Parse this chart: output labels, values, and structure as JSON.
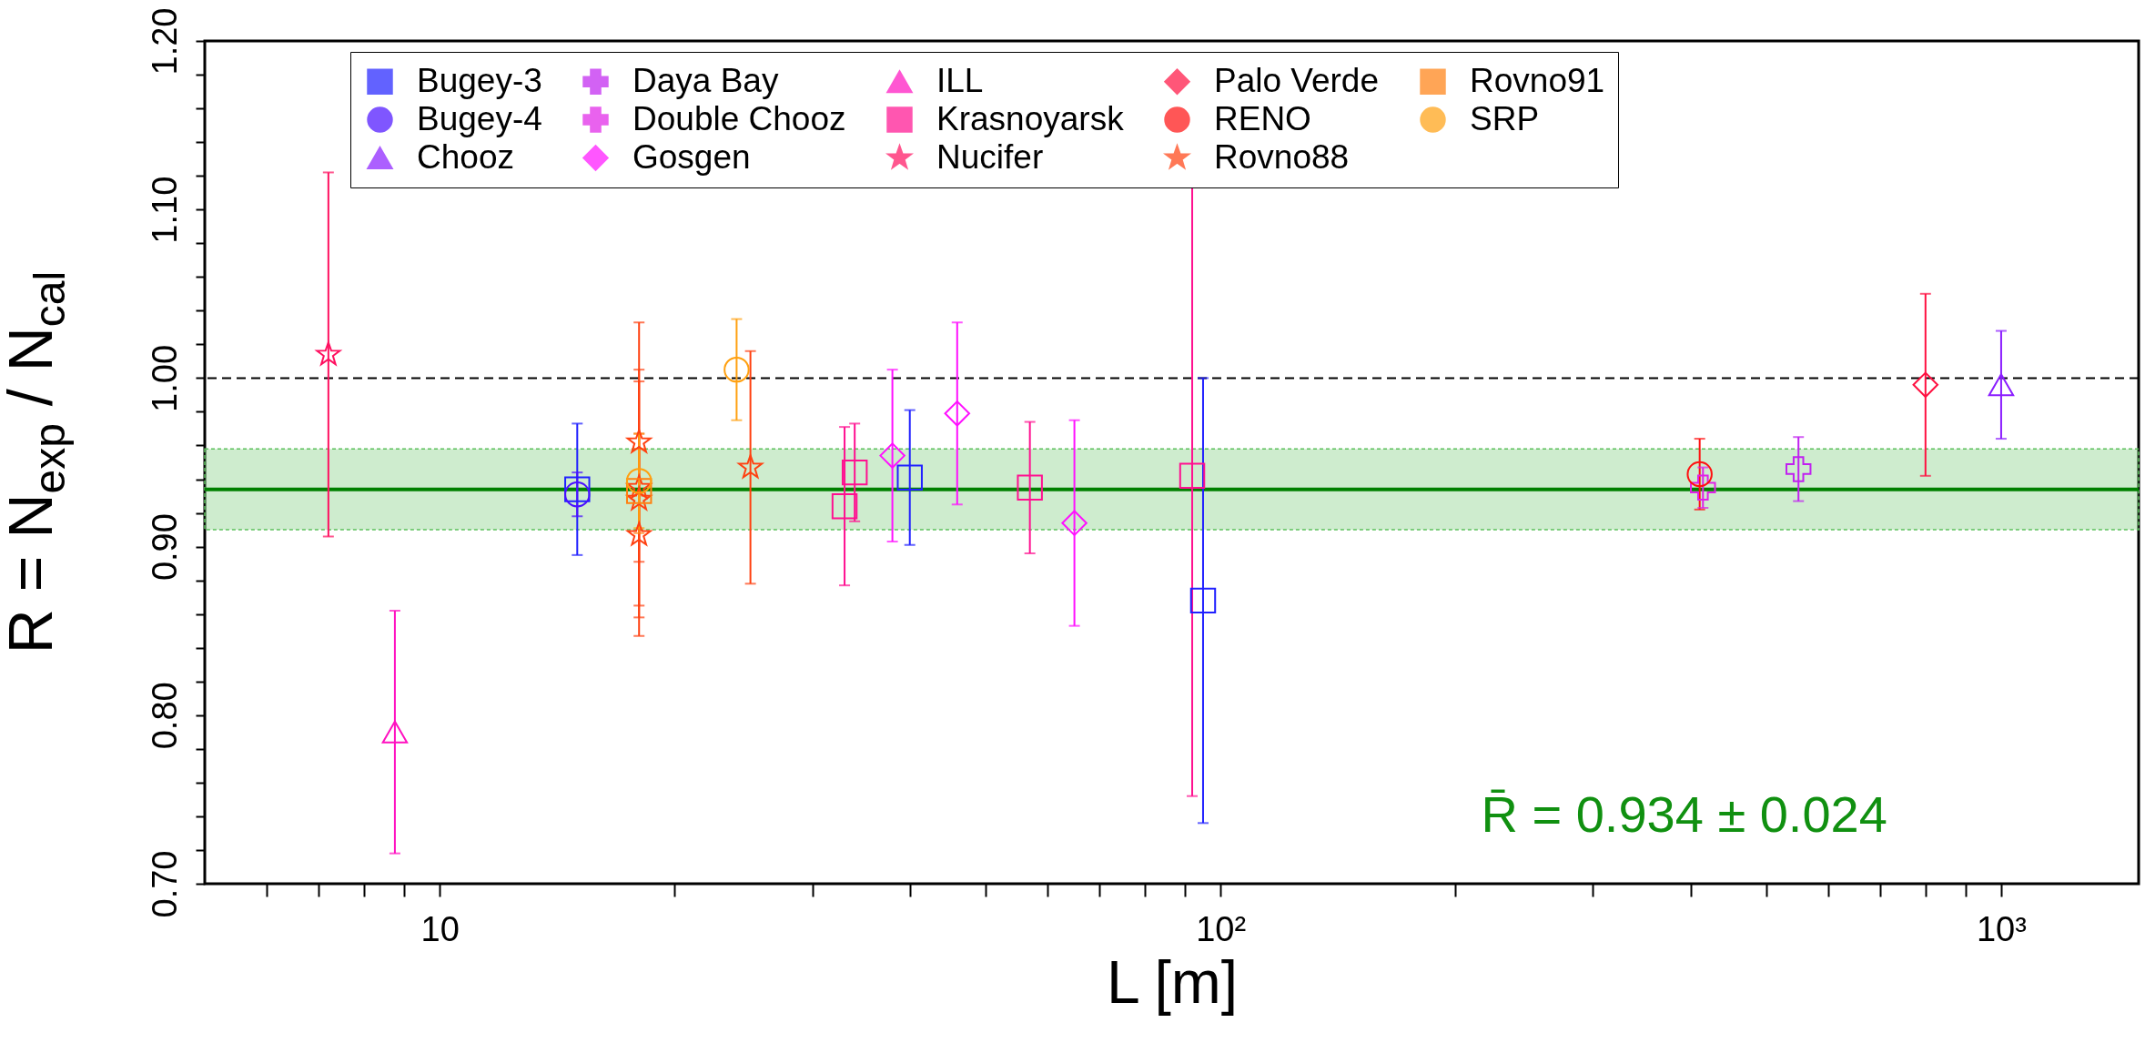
{
  "chart_data": {
    "type": "scatter",
    "xlabel": "L [m]",
    "ylabel": "R = N$_{exp}$ / N$_{cal}$",
    "annotations": [
      "R̄ = 0.934 ± 0.024"
    ],
    "log": "x",
    "grid": false,
    "legend": "top",
    "xlim": [
      5,
      1500
    ],
    "ylim": [
      0.7,
      1.2
    ],
    "xticks": [
      {
        "value": 6,
        "label": null
      },
      {
        "value": 7,
        "label": null
      },
      {
        "value": 8,
        "label": null
      },
      {
        "value": 9,
        "label": null
      },
      10,
      {
        "value": 20,
        "label": null
      },
      {
        "value": 30,
        "label": null
      },
      {
        "value": 40,
        "label": null
      },
      {
        "value": 50,
        "label": null
      },
      {
        "value": 60,
        "label": null
      },
      {
        "value": 70,
        "label": null
      },
      {
        "value": 80,
        "label": null
      },
      {
        "value": 90,
        "label": null
      },
      {
        "value": 100,
        "label": "10²"
      },
      {
        "value": 200,
        "label": null
      },
      {
        "value": 300,
        "label": null
      },
      {
        "value": 400,
        "label": null
      },
      {
        "value": 500,
        "label": null
      },
      {
        "value": 600,
        "label": null
      },
      {
        "value": 700,
        "label": null
      },
      {
        "value": 800,
        "label": null
      },
      {
        "value": 900,
        "label": null
      },
      {
        "value": 1000,
        "label": "10³"
      }
    ],
    "yticks": [
      {
        "value": 0.7,
        "label": "0.70"
      },
      {
        "value": 0.8,
        "label": "0.80"
      },
      {
        "value": 0.9,
        "label": "0.90"
      },
      {
        "value": 1.0,
        "label": "1.00"
      },
      {
        "value": 1.1,
        "label": "1.10"
      },
      {
        "value": 1.2,
        "label": "1.20"
      },
      {
        "value": 0.72,
        "label": null
      },
      {
        "value": 0.74,
        "label": null
      },
      {
        "value": 0.76,
        "label": null
      },
      {
        "value": 0.78,
        "label": null
      },
      {
        "value": 0.82,
        "label": null
      },
      {
        "value": 0.84,
        "label": null
      },
      {
        "value": 0.86,
        "label": null
      },
      {
        "value": 0.88,
        "label": null
      },
      {
        "value": 0.92,
        "label": null
      },
      {
        "value": 0.94,
        "label": null
      },
      {
        "value": 0.96,
        "label": null
      },
      {
        "value": 0.98,
        "label": null
      },
      {
        "value": 1.02,
        "label": null
      },
      {
        "value": 1.04,
        "label": null
      },
      {
        "value": 1.06,
        "label": null
      },
      {
        "value": 1.08,
        "label": null
      },
      {
        "value": 1.12,
        "label": null
      },
      {
        "value": 1.14,
        "label": null
      },
      {
        "value": 1.16,
        "label": null
      },
      {
        "value": 1.18,
        "label": null
      }
    ],
    "ref_lines": [
      {
        "axis": "y",
        "value": 1.0,
        "label": null,
        "color": "#000000",
        "line_style": "dashed"
      },
      {
        "axis": "y",
        "value": 0.934,
        "label": null,
        "color": "#008000",
        "line_style": "solid"
      }
    ],
    "bands": [
      {
        "axis": "y",
        "from": 0.91,
        "to": 0.958,
        "label": null,
        "color": "#5cc05c"
      }
    ],
    "series": [
      {
        "name": "Bugey-3",
        "color": "#2020ff",
        "marker": "square",
        "x": [
          15,
          40,
          95
        ],
        "values": [
          0.934,
          0.941,
          0.868
        ],
        "errors": [
          0.039,
          0.04,
          0.132
        ]
      },
      {
        "name": "Bugey-4",
        "color": "#4a10ff",
        "marker": "circle",
        "x": [
          15
        ],
        "values": [
          0.931
        ],
        "errors": [
          0.013
        ]
      },
      {
        "name": "Chooz",
        "color": "#8a1cff",
        "marker": "triangle",
        "x": [
          1000
        ],
        "values": [
          0.996
        ],
        "errors": [
          0.032
        ]
      },
      {
        "name": "Daya Bay",
        "color": "#c020f0",
        "marker": "cross",
        "x": [
          550
        ],
        "values": [
          0.946
        ],
        "errors": [
          0.019
        ]
      },
      {
        "name": "Double Chooz",
        "color": "#e020e8",
        "marker": "cross",
        "x": [
          415
        ],
        "values": [
          0.935
        ],
        "errors": [
          0.012
        ]
      },
      {
        "name": "Gosgen",
        "color": "#ff10ff",
        "marker": "diamond",
        "x": [
          38,
          46,
          65
        ],
        "values": [
          0.954,
          0.979,
          0.914
        ],
        "errors": [
          0.051,
          0.054,
          0.061
        ]
      },
      {
        "name": "ILL",
        "color": "#ff10c0",
        "marker": "triangle",
        "x": [
          8.76
        ],
        "values": [
          0.79
        ],
        "errors": [
          0.072
        ]
      },
      {
        "name": "Krasnoyarsk",
        "color": "#ff1090",
        "marker": "square",
        "x": [
          33,
          34,
          57,
          92
        ],
        "values": [
          0.924,
          0.944,
          0.935,
          0.942
        ],
        "errors": [
          0.047,
          0.029,
          0.039,
          0.19
        ]
      },
      {
        "name": "Nucifer",
        "color": "#ff1060",
        "marker": "star",
        "x": [
          7.2
        ],
        "values": [
          1.014
        ],
        "errors": [
          0.108
        ]
      },
      {
        "name": "Palo Verde",
        "color": "#ff1040",
        "marker": "diamond",
        "x": [
          800
        ],
        "values": [
          0.996
        ],
        "errors": [
          0.054
        ]
      },
      {
        "name": "RENO",
        "color": "#ff1010",
        "marker": "circle",
        "x": [
          411
        ],
        "values": [
          0.943
        ],
        "errors": [
          0.021
        ]
      },
      {
        "name": "Rovno88",
        "color": "#ff4010",
        "marker": "star",
        "x": [
          18,
          18,
          18,
          18,
          25
        ],
        "values": [
          0.962,
          0.935,
          0.928,
          0.907,
          0.947
        ],
        "errors": [
          0.071,
          0.07,
          0.07,
          0.06,
          0.069
        ]
      },
      {
        "name": "Rovno91",
        "color": "#ff8010",
        "marker": "square",
        "x": [
          18
        ],
        "values": [
          0.933
        ],
        "errors": [
          0.025
        ]
      },
      {
        "name": "SRP",
        "color": "#ffa010",
        "marker": "circle",
        "x": [
          18,
          24
        ],
        "values": [
          0.939,
          1.005
        ],
        "errors": [
          0.028,
          0.03
        ]
      }
    ]
  }
}
